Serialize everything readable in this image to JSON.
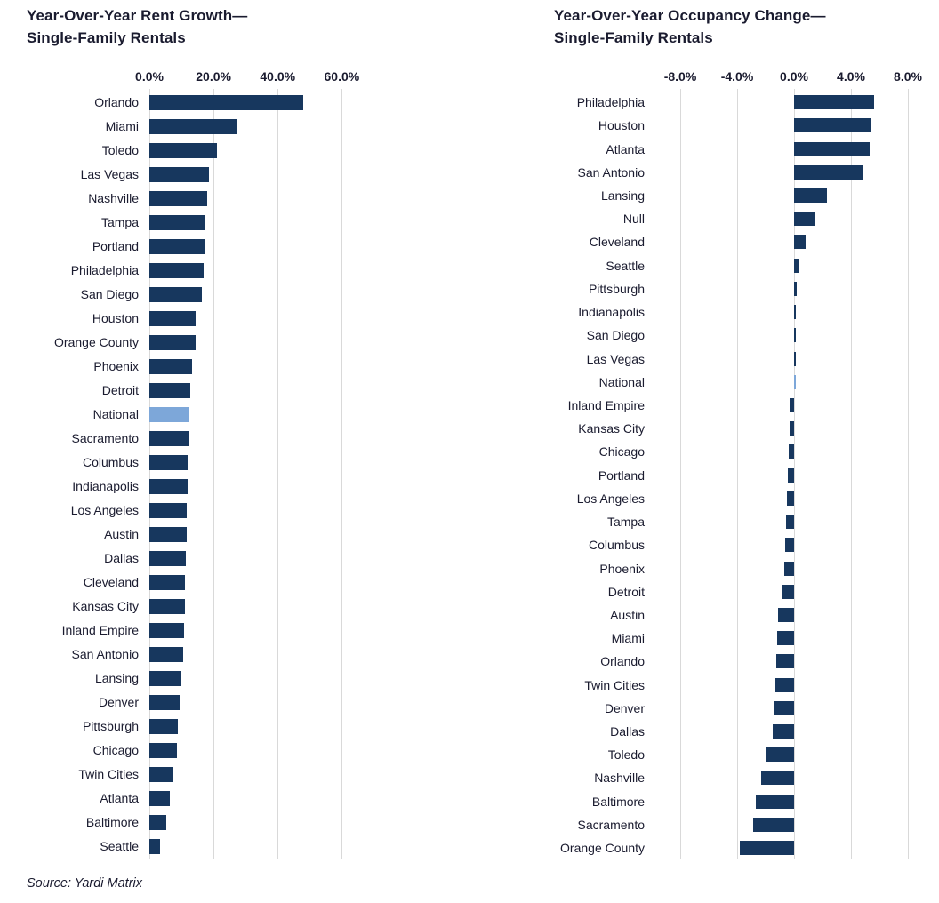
{
  "source": "Source: Yardi Matrix",
  "colors": {
    "bar": "#17375e",
    "highlight_bar": "#7da7d9",
    "gridline": "#d9d9d9",
    "text": "#1a1b2f"
  },
  "chart_data": [
    {
      "type": "bar",
      "orientation": "horizontal",
      "title": "Year-Over-Year Rent Growth—Single-Family Rentals",
      "title_line1": "Year-Over-Year Rent Growth—",
      "title_line2": "Single-Family Rentals",
      "xlabel": "",
      "ylabel": "",
      "xlim": [
        0,
        63.5
      ],
      "x_ticks": [
        0,
        20,
        40,
        60
      ],
      "x_tick_labels": [
        "0.0%",
        "20.0%",
        "40.0%",
        "60.0%"
      ],
      "grid": true,
      "highlight_category": "National",
      "categories": [
        "Orlando",
        "Miami",
        "Toledo",
        "Las Vegas",
        "Nashville",
        "Tampa",
        "Portland",
        "Philadelphia",
        "San Diego",
        "Houston",
        "Orange County",
        "Phoenix",
        "Detroit",
        "National",
        "Sacramento",
        "Columbus",
        "Indianapolis",
        "Los Angeles",
        "Austin",
        "Dallas",
        "Cleveland",
        "Kansas City",
        "Inland Empire",
        "San Antonio",
        "Lansing",
        "Denver",
        "Pittsburgh",
        "Chicago",
        "Twin Cities",
        "Atlanta",
        "Baltimore",
        "Seattle"
      ],
      "values": [
        48.0,
        27.5,
        21.0,
        18.5,
        18.0,
        17.6,
        17.3,
        17.0,
        16.4,
        14.4,
        14.3,
        13.4,
        12.7,
        12.6,
        12.1,
        11.9,
        11.8,
        11.7,
        11.6,
        11.5,
        11.1,
        11.0,
        10.7,
        10.4,
        9.9,
        9.4,
        8.9,
        8.5,
        7.3,
        6.3,
        5.4,
        3.2
      ]
    },
    {
      "type": "bar",
      "orientation": "horizontal",
      "title": "Year-Over-Year Occupancy Change—Single-Family Rentals",
      "title_line1": "Year-Over-Year Occupancy Change—",
      "title_line2": "Single-Family Rentals",
      "xlabel": "",
      "ylabel": "",
      "xlim": [
        -9,
        9
      ],
      "x_ticks": [
        -8,
        -4,
        0,
        4,
        8
      ],
      "x_tick_labels": [
        "-8.0%",
        "-4.0%",
        "0.0%",
        "4.0%",
        "8.0%"
      ],
      "grid": true,
      "highlight_category": "National",
      "categories": [
        "Philadelphia",
        "Houston",
        "Atlanta",
        "San Antonio",
        "Lansing",
        "Null",
        "Cleveland",
        "Seattle",
        "Pittsburgh",
        "Indianapolis",
        "San Diego",
        "Las Vegas",
        "National",
        "Inland Empire",
        "Kansas City",
        "Chicago",
        "Portland",
        "Los Angeles",
        "Tampa",
        "Columbus",
        "Phoenix",
        "Detroit",
        "Austin",
        "Miami",
        "Orlando",
        "Twin Cities",
        "Denver",
        "Dallas",
        "Toledo",
        "Nashville",
        "Baltimore",
        "Sacramento",
        "Orange County"
      ],
      "values": [
        5.6,
        5.4,
        5.3,
        4.8,
        2.3,
        1.5,
        0.8,
        0.3,
        0.2,
        0.15,
        0.1,
        0.1,
        0.05,
        -0.3,
        -0.3,
        -0.4,
        -0.45,
        -0.5,
        -0.55,
        -0.65,
        -0.7,
        -0.8,
        -1.1,
        -1.2,
        -1.25,
        -1.3,
        -1.4,
        -1.5,
        -2.0,
        -2.3,
        -2.7,
        -2.9,
        -3.8
      ]
    }
  ]
}
